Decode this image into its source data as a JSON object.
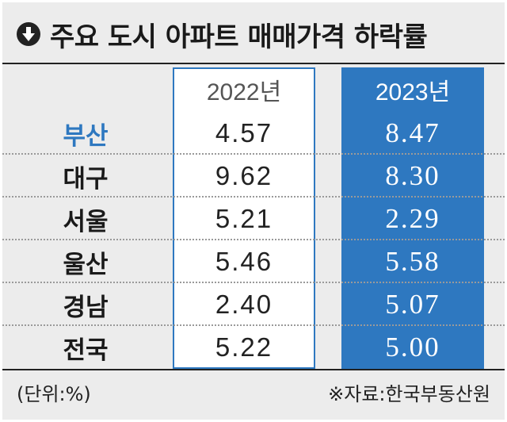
{
  "title": "주요 도시 아파트 매매가격 하락률",
  "title_icon": "arrow-down-circle-icon",
  "colors": {
    "accent": "#2e78c0",
    "background": "#ececec"
  },
  "chart_data": {
    "type": "table",
    "title": "주요 도시 아파트 매매가격 하락률",
    "columns": [
      "2022년",
      "2023년"
    ],
    "rows": [
      {
        "label": "부산",
        "values": [
          "4.57",
          "8.47"
        ]
      },
      {
        "label": "대구",
        "values": [
          "9.62",
          "8.30"
        ]
      },
      {
        "label": "서울",
        "values": [
          "5.21",
          "2.29"
        ]
      },
      {
        "label": "울산",
        "values": [
          "5.46",
          "5.58"
        ]
      },
      {
        "label": "경남",
        "values": [
          "2.40",
          "5.07"
        ]
      },
      {
        "label": "전국",
        "values": [
          "5.22",
          "5.00"
        ]
      }
    ],
    "highlighted_row": "부산",
    "highlighted_column": "2023년",
    "unit_note": "(단위:%)",
    "source": "※자료:한국부동산원"
  }
}
